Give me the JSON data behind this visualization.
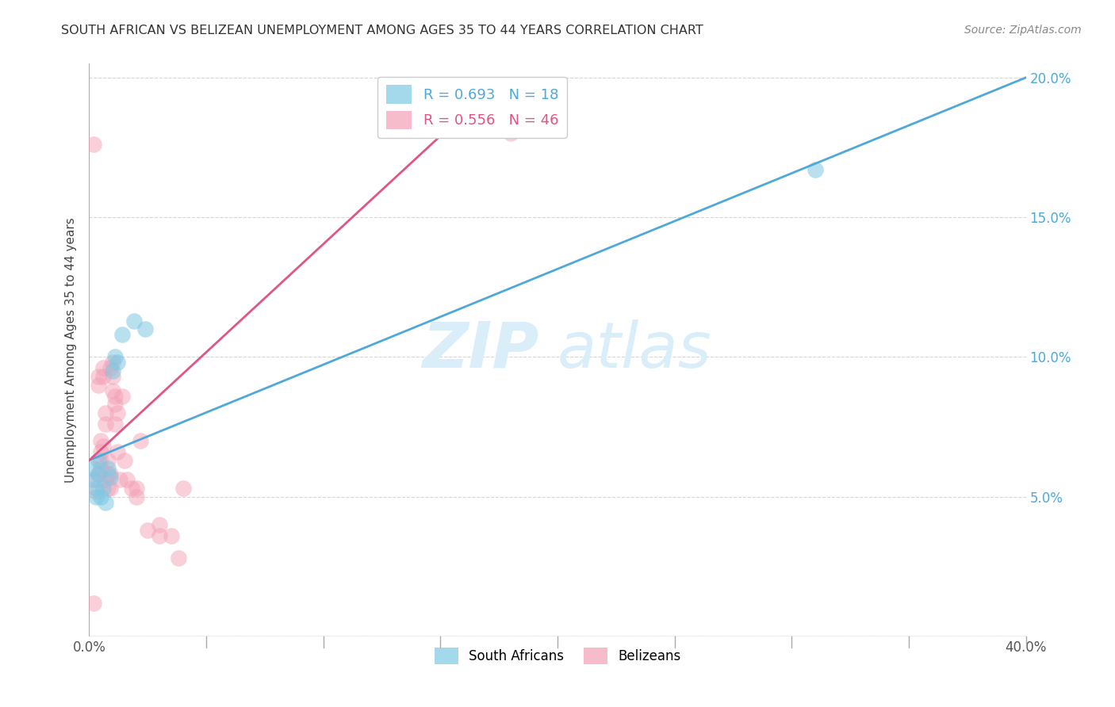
{
  "title": "SOUTH AFRICAN VS BELIZEAN UNEMPLOYMENT AMONG AGES 35 TO 44 YEARS CORRELATION CHART",
  "source": "Source: ZipAtlas.com",
  "ylabel": "Unemployment Among Ages 35 to 44 years",
  "xlim": [
    0.0,
    0.4
  ],
  "ylim": [
    0.0,
    0.205
  ],
  "xticks": [
    0.0,
    0.05,
    0.1,
    0.15,
    0.2,
    0.25,
    0.3,
    0.35,
    0.4
  ],
  "yticks": [
    0.0,
    0.05,
    0.1,
    0.15,
    0.2
  ],
  "legend_entries": [
    {
      "label_r": "R = 0.693",
      "label_n": "N = 18",
      "color": "#7ec8e3"
    },
    {
      "label_r": "R = 0.556",
      "label_n": "N = 46",
      "color": "#f4a0b5"
    }
  ],
  "legend_labels_bottom": [
    "South Africans",
    "Belizeans"
  ],
  "blue_color": "#7ec8e3",
  "pink_color": "#f4a0b5",
  "blue_line_color": "#4ea8d8",
  "pink_line_color": "#e05585",
  "tick_color": "#4ea8d8",
  "watermark_zip": "ZIP",
  "watermark_atlas": "atlas",
  "watermark_color": "#daeef9",
  "south_african_points": [
    [
      0.002,
      0.06
    ],
    [
      0.002,
      0.056
    ],
    [
      0.003,
      0.053
    ],
    [
      0.003,
      0.05
    ],
    [
      0.004,
      0.063
    ],
    [
      0.004,
      0.058
    ],
    [
      0.005,
      0.05
    ],
    [
      0.006,
      0.053
    ],
    [
      0.007,
      0.048
    ],
    [
      0.008,
      0.06
    ],
    [
      0.009,
      0.057
    ],
    [
      0.01,
      0.095
    ],
    [
      0.011,
      0.1
    ],
    [
      0.012,
      0.098
    ],
    [
      0.014,
      0.108
    ],
    [
      0.019,
      0.113
    ],
    [
      0.024,
      0.11
    ],
    [
      0.31,
      0.167
    ]
  ],
  "belizean_points": [
    [
      0.002,
      0.176
    ],
    [
      0.002,
      0.012
    ],
    [
      0.003,
      0.056
    ],
    [
      0.003,
      0.052
    ],
    [
      0.004,
      0.058
    ],
    [
      0.004,
      0.09
    ],
    [
      0.004,
      0.093
    ],
    [
      0.005,
      0.06
    ],
    [
      0.005,
      0.066
    ],
    [
      0.005,
      0.07
    ],
    [
      0.005,
      0.063
    ],
    [
      0.006,
      0.068
    ],
    [
      0.006,
      0.093
    ],
    [
      0.006,
      0.096
    ],
    [
      0.007,
      0.076
    ],
    [
      0.007,
      0.08
    ],
    [
      0.007,
      0.056
    ],
    [
      0.008,
      0.063
    ],
    [
      0.008,
      0.058
    ],
    [
      0.008,
      0.053
    ],
    [
      0.009,
      0.053
    ],
    [
      0.009,
      0.058
    ],
    [
      0.009,
      0.096
    ],
    [
      0.01,
      0.098
    ],
    [
      0.01,
      0.093
    ],
    [
      0.01,
      0.088
    ],
    [
      0.011,
      0.086
    ],
    [
      0.011,
      0.083
    ],
    [
      0.011,
      0.076
    ],
    [
      0.012,
      0.08
    ],
    [
      0.012,
      0.066
    ],
    [
      0.013,
      0.056
    ],
    [
      0.014,
      0.086
    ],
    [
      0.015,
      0.063
    ],
    [
      0.016,
      0.056
    ],
    [
      0.018,
      0.053
    ],
    [
      0.02,
      0.053
    ],
    [
      0.02,
      0.05
    ],
    [
      0.022,
      0.07
    ],
    [
      0.025,
      0.038
    ],
    [
      0.03,
      0.04
    ],
    [
      0.03,
      0.036
    ],
    [
      0.035,
      0.036
    ],
    [
      0.038,
      0.028
    ],
    [
      0.04,
      0.053
    ],
    [
      0.18,
      0.18
    ]
  ],
  "blue_line": [
    [
      0.0,
      0.063
    ],
    [
      0.4,
      0.2
    ]
  ],
  "pink_line": [
    [
      0.0,
      0.063
    ],
    [
      0.155,
      0.183
    ]
  ]
}
